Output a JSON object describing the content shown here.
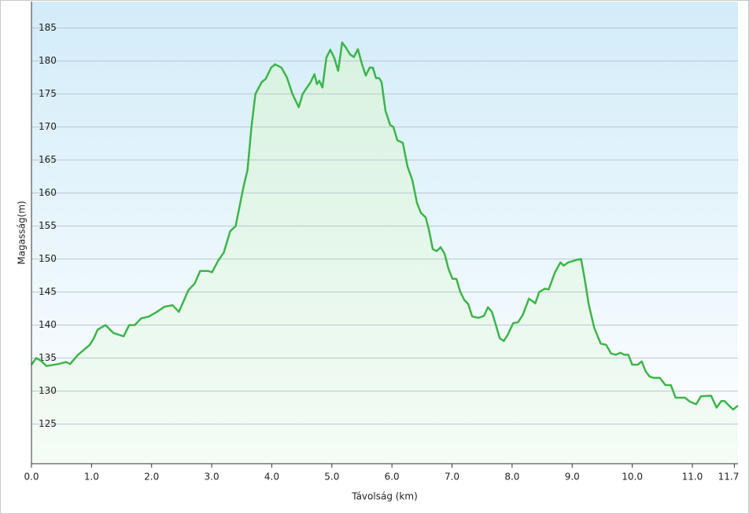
{
  "chart_data": {
    "type": "area",
    "x_label": "Távolság  (km)",
    "y_label": "Magasság(m)",
    "xlim": [
      0,
      11.76
    ],
    "ylim": [
      119,
      189
    ],
    "xticks": [
      {
        "value": 0,
        "label": "0.0"
      },
      {
        "value": 1,
        "label": "1.0"
      },
      {
        "value": 2,
        "label": "2.0"
      },
      {
        "value": 3,
        "label": "3.0"
      },
      {
        "value": 4,
        "label": "4.0"
      },
      {
        "value": 5,
        "label": "5.0"
      },
      {
        "value": 6,
        "label": "6.0"
      },
      {
        "value": 7,
        "label": "7.0"
      },
      {
        "value": 8,
        "label": "8.0"
      },
      {
        "value": 9,
        "label": "9.0"
      },
      {
        "value": 10,
        "label": "10.0"
      },
      {
        "value": 11,
        "label": "11.0"
      },
      11.7
    ],
    "yticks": [
      125,
      130,
      135,
      140,
      145,
      150,
      155,
      160,
      165,
      170,
      175,
      180,
      185
    ],
    "grid": true,
    "color": "#3cb54a",
    "x": [
      0,
      0.079,
      0.157,
      0.249,
      0.446,
      0.577,
      0.643,
      0.774,
      0.971,
      1.037,
      1.102,
      1.234,
      1.365,
      1.535,
      1.627,
      1.719,
      1.824,
      1.955,
      2.087,
      2.218,
      2.349,
      2.454,
      2.612,
      2.717,
      2.808,
      2.94,
      3.005,
      3.11,
      3.202,
      3.307,
      3.399,
      3.53,
      3.596,
      3.661,
      3.727,
      3.832,
      3.898,
      3.99,
      4.055,
      4.16,
      4.252,
      4.344,
      4.449,
      4.514,
      4.646,
      4.711,
      4.751,
      4.79,
      4.843,
      4.908,
      4.974,
      5.039,
      5.105,
      5.171,
      5.236,
      5.302,
      5.367,
      5.433,
      5.499,
      5.564,
      5.63,
      5.682,
      5.735,
      5.787,
      5.827,
      5.892,
      5.971,
      6.024,
      6.089,
      6.181,
      6.26,
      6.339,
      6.417,
      6.483,
      6.562,
      6.614,
      6.68,
      6.745,
      6.811,
      6.877,
      6.942,
      7.008,
      7.073,
      7.139,
      7.205,
      7.27,
      7.336,
      7.441,
      7.533,
      7.598,
      7.664,
      7.73,
      7.795,
      7.861,
      7.926,
      8.018,
      8.097,
      8.176,
      8.281,
      8.386,
      8.451,
      8.543,
      8.609,
      8.714,
      8.806,
      8.858,
      8.937,
      9.016,
      9.081,
      9.147,
      9.199,
      9.278,
      9.37,
      9.475,
      9.567,
      9.646,
      9.724,
      9.803,
      9.869,
      9.934,
      10.0,
      10.092,
      10.157,
      10.223,
      10.289,
      10.354,
      10.459,
      10.551,
      10.643,
      10.722,
      10.879,
      10.958,
      11.063,
      11.142,
      11.312,
      11.404,
      11.483,
      11.535,
      11.588,
      11.68,
      11.759
    ],
    "values": [
      134,
      135,
      134.6,
      133.8,
      134.1,
      134.4,
      134.1,
      135.5,
      137,
      138,
      139.3,
      140,
      138.8,
      138.3,
      140,
      140,
      141,
      141.3,
      142,
      142.8,
      143,
      142,
      145.3,
      146.3,
      148.2,
      148.2,
      148,
      149.8,
      151,
      154.2,
      155,
      161,
      163.5,
      170,
      175,
      176.8,
      177.3,
      179,
      179.5,
      179,
      177.5,
      175,
      173,
      175,
      176.8,
      178,
      176.5,
      177,
      176,
      180.5,
      181.7,
      180.5,
      178.5,
      182.8,
      182,
      181,
      180.6,
      181.8,
      179.6,
      177.8,
      179,
      179,
      177.4,
      177.4,
      176.8,
      172.5,
      170.3,
      170,
      168,
      167.6,
      164,
      162,
      158.5,
      157,
      156.3,
      154.5,
      151.5,
      151.2,
      151.8,
      150.8,
      148.5,
      147,
      147,
      145,
      143.8,
      143.2,
      141.3,
      141.1,
      141.4,
      142.7,
      142,
      140,
      138,
      137.6,
      138.5,
      140.3,
      140.4,
      141.5,
      144,
      143.3,
      145,
      145.5,
      145.4,
      148,
      149.5,
      149,
      149.5,
      149.7,
      149.9,
      150,
      147.5,
      143,
      139.5,
      137.2,
      137,
      135.7,
      135.5,
      135.8,
      135.5,
      135.5,
      134,
      134,
      134.5,
      133,
      132.2,
      132,
      132,
      130.9,
      130.9,
      129,
      129,
      128.4,
      128,
      129.2,
      129.3,
      127.5,
      128.5,
      128.5,
      128,
      127.2,
      127.8
    ]
  }
}
